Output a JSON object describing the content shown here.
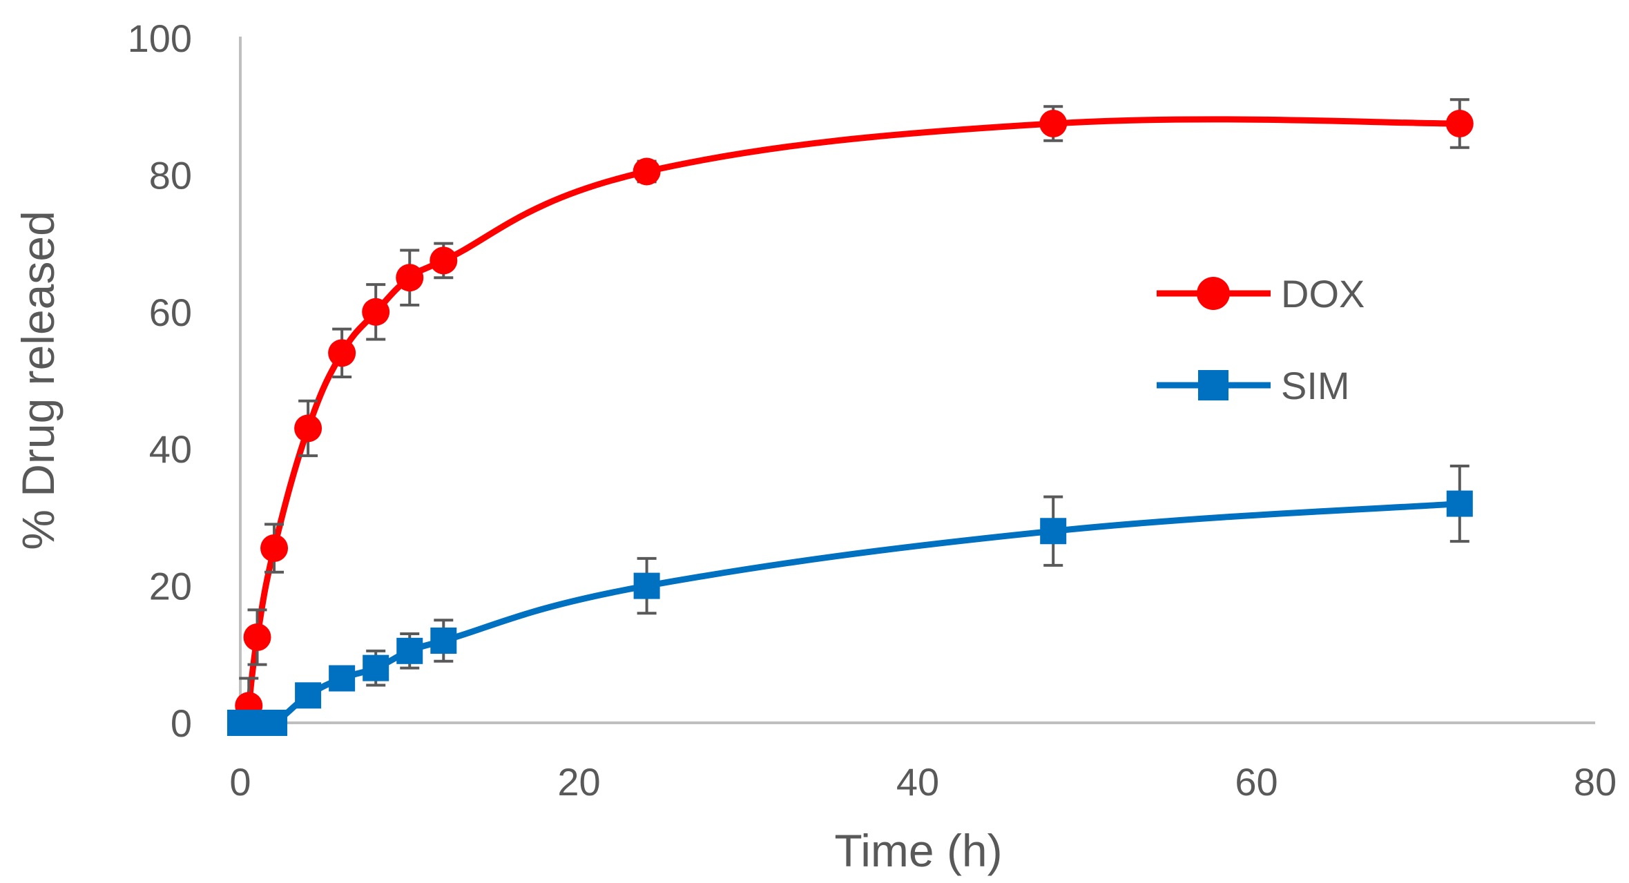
{
  "chart_data": {
    "type": "line",
    "title": "",
    "xlabel": "Time (h)",
    "ylabel": "% Drug released",
    "xlim": [
      0,
      80
    ],
    "ylim": [
      0,
      100
    ],
    "x_ticks": [
      0,
      20,
      40,
      60,
      80
    ],
    "y_ticks": [
      0,
      20,
      40,
      60,
      80,
      100
    ],
    "grid": false,
    "legend_position": "right",
    "series": [
      {
        "name": "DOX",
        "color": "#ff0000",
        "marker": "circle",
        "smooth": true,
        "x": [
          0.5,
          1,
          2,
          4,
          6,
          8,
          10,
          12,
          24,
          48,
          72
        ],
        "values": [
          2.5,
          12.5,
          25.5,
          43,
          54,
          60,
          65,
          67.5,
          80.5,
          87.5,
          87.5
        ],
        "errors": [
          4,
          4,
          3.5,
          4,
          3.5,
          4,
          4,
          2.5,
          1.5,
          2.5,
          3.5
        ]
      },
      {
        "name": "SIM",
        "color": "#0070c0",
        "marker": "square",
        "smooth": true,
        "x": [
          0,
          0.5,
          1,
          2,
          4,
          6,
          8,
          10,
          12,
          24,
          48,
          72
        ],
        "values": [
          0,
          0,
          0,
          0,
          4,
          6.5,
          8,
          10.5,
          12,
          20,
          28,
          32
        ],
        "errors": [
          0,
          0,
          0,
          0,
          0,
          0,
          2.5,
          2.5,
          3,
          4,
          5,
          5.5
        ]
      }
    ]
  }
}
